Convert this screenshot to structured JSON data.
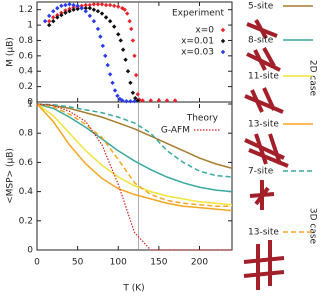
{
  "chart_data": [
    {
      "type": "scatter",
      "ylabel": "M (μB)",
      "legend_title": "Experiment",
      "xlim": [
        0,
        240
      ],
      "ylim": [
        0,
        1.3
      ],
      "yticks": [
        0,
        0.2,
        0.4,
        0.6,
        0.8,
        1,
        1.2
      ],
      "vline": 125,
      "series": [
        {
          "name": "x=0",
          "color": "#e8242c",
          "x": [
            15,
            20,
            25,
            30,
            35,
            40,
            45,
            50,
            55,
            60,
            65,
            70,
            75,
            80,
            85,
            90,
            95,
            100,
            105,
            108,
            111,
            114,
            116,
            118,
            120,
            122,
            124,
            126,
            130,
            140,
            150,
            160,
            170
          ],
          "values": [
            1.05,
            1.1,
            1.13,
            1.16,
            1.19,
            1.21,
            1.23,
            1.24,
            1.25,
            1.26,
            1.26,
            1.27,
            1.27,
            1.27,
            1.26,
            1.26,
            1.25,
            1.24,
            1.22,
            1.2,
            1.15,
            1.05,
            0.95,
            0.8,
            0.6,
            0.35,
            0.1,
            0.03,
            0.02,
            0.02,
            0.02,
            0.02,
            0.02
          ]
        },
        {
          "name": "x=0.01",
          "color": "#111111",
          "x": [
            15,
            20,
            25,
            30,
            35,
            40,
            45,
            50,
            55,
            60,
            65,
            70,
            75,
            80,
            85,
            90,
            95,
            100,
            103,
            106,
            109,
            112,
            115,
            118,
            121,
            124
          ],
          "values": [
            1.0,
            1.05,
            1.1,
            1.13,
            1.16,
            1.18,
            1.2,
            1.21,
            1.22,
            1.22,
            1.22,
            1.2,
            1.18,
            1.15,
            1.1,
            1.05,
            0.98,
            0.88,
            0.8,
            0.68,
            0.55,
            0.4,
            0.25,
            0.12,
            0.05,
            0.02
          ]
        },
        {
          "name": "x=0.03",
          "color": "#2a3bf0",
          "x": [
            10,
            15,
            20,
            25,
            30,
            35,
            40,
            45,
            50,
            55,
            60,
            65,
            70,
            75,
            78,
            81,
            84,
            87,
            90,
            93,
            96,
            99,
            102,
            105,
            110,
            115,
            120
          ],
          "values": [
            1.05,
            1.12,
            1.18,
            1.22,
            1.25,
            1.26,
            1.27,
            1.26,
            1.25,
            1.22,
            1.18,
            1.12,
            1.05,
            0.95,
            0.85,
            0.73,
            0.6,
            0.48,
            0.36,
            0.25,
            0.15,
            0.08,
            0.04,
            0.02,
            0.01,
            0.01,
            0.01
          ]
        }
      ]
    },
    {
      "type": "line",
      "xlabel": "T (K)",
      "ylabel": "<MSP> (μB)",
      "legend_title": "Theory",
      "xlim": [
        0,
        240
      ],
      "ylim": [
        0,
        1
      ],
      "xticks": [
        0,
        50,
        100,
        150,
        200
      ],
      "yticks": [
        0,
        0.2,
        0.4,
        0.6,
        0.8,
        1
      ],
      "x": [
        0,
        20,
        40,
        60,
        80,
        100,
        120,
        140,
        160,
        180,
        200,
        220,
        240
      ],
      "series": [
        {
          "name": "5-site",
          "group": "2D case",
          "color": "#a67c2e",
          "dash": "solid",
          "values": [
            1,
            0.99,
            0.97,
            0.94,
            0.91,
            0.87,
            0.83,
            0.78,
            0.73,
            0.68,
            0.63,
            0.59,
            0.56
          ]
        },
        {
          "name": "8-site",
          "group": "2D case",
          "color": "#3aa9a0",
          "dash": "solid",
          "values": [
            1,
            0.97,
            0.91,
            0.84,
            0.76,
            0.68,
            0.61,
            0.55,
            0.5,
            0.46,
            0.43,
            0.41,
            0.4
          ]
        },
        {
          "name": "11-site",
          "group": "2D case",
          "color": "#f0e43a",
          "dash": "solid",
          "values": [
            1,
            0.92,
            0.8,
            0.68,
            0.58,
            0.5,
            0.44,
            0.4,
            0.37,
            0.35,
            0.33,
            0.32,
            0.31
          ]
        },
        {
          "name": "13-site",
          "group": "2D case",
          "color": "#f5a623",
          "dash": "solid",
          "values": [
            1,
            0.88,
            0.72,
            0.59,
            0.49,
            0.42,
            0.38,
            0.35,
            0.32,
            0.3,
            0.29,
            0.28,
            0.27
          ]
        },
        {
          "name": "7-site",
          "group": "3D case",
          "color": "#3aa9a0",
          "dash": "dashed",
          "values": [
            1,
            0.995,
            0.98,
            0.96,
            0.94,
            0.91,
            0.87,
            0.8,
            0.68,
            0.6,
            0.54,
            0.51,
            0.5
          ]
        },
        {
          "name": "13-site",
          "group": "3D case",
          "color": "#f5a623",
          "dash": "dashed",
          "values": [
            1,
            0.98,
            0.93,
            0.86,
            0.77,
            0.62,
            0.46,
            0.38,
            0.34,
            0.32,
            0.31,
            0.3,
            0.3
          ]
        },
        {
          "name": "G-AFM",
          "color": "#d42020",
          "dash": "dotted",
          "values": [
            1,
            0.99,
            0.95,
            0.88,
            0.72,
            0.45,
            0.12,
            0,
            0,
            0,
            0,
            0,
            0
          ]
        }
      ]
    }
  ]
}
